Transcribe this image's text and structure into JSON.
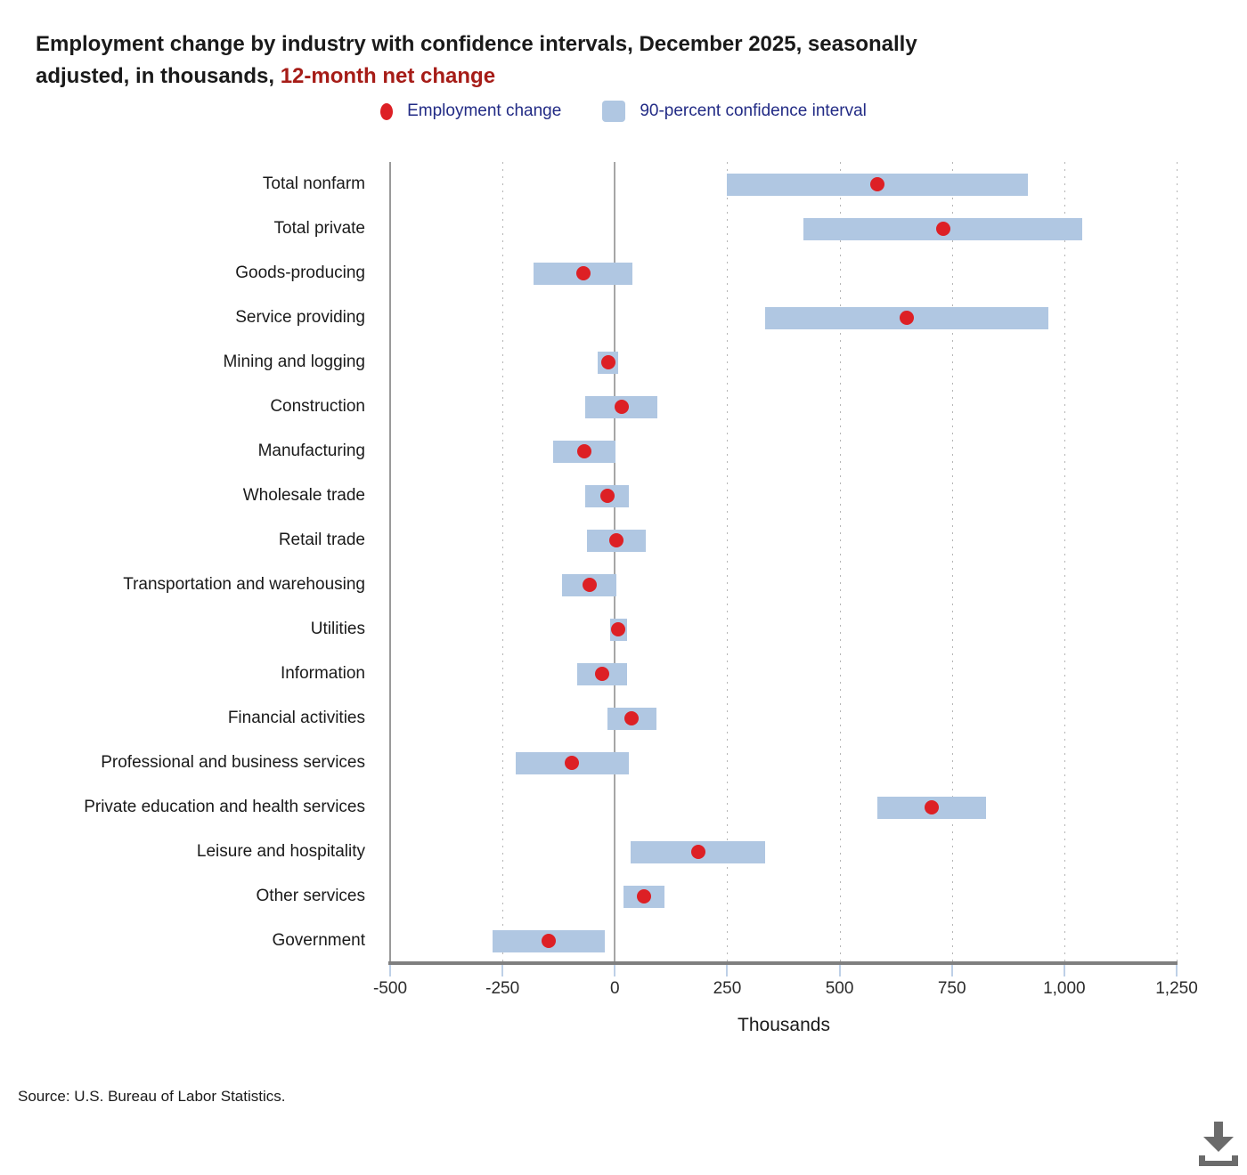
{
  "title": {
    "line1": "Employment change by industry with confidence intervals, December 2025, seasonally",
    "line2": "adjusted, in thousands,",
    "highlight": "12-month net change"
  },
  "legend": {
    "employment_change": "Employment change",
    "confidence_interval": "90-percent confidence interval"
  },
  "source_note": "Source: U.S. Bureau of Labor Statistics.",
  "download_icon": "download-arrow-to-tray",
  "colors": {
    "ci_bar": "#b0c7e2",
    "dot": "#dd2025",
    "legend_text": "#222b85",
    "title_highlight": "#a61c17",
    "gridline": "#b5b5b5",
    "zero_line": "#a6a6a6",
    "baseline": "#7f7f7f",
    "tick": "#bed0e7",
    "icon": "#6b6b6b"
  },
  "chart_data": {
    "type": "scatter",
    "subtype": "dot-with-confidence-interval",
    "title": "Employment change by industry with confidence intervals, December 2025, seasonally adjusted, in thousands, 12-month net change",
    "xlabel": "Thousands",
    "xlim": [
      -500,
      1250
    ],
    "x_ticks": [
      -500,
      -250,
      0,
      250,
      500,
      750,
      1000,
      1250
    ],
    "x_tick_labels": [
      "-500",
      "-250",
      "0",
      "250",
      "500",
      "750",
      "1,000",
      "1,250"
    ],
    "grid": "vertical-dotted-at-ticks",
    "legend_position": "top-center",
    "categories": [
      "Total nonfarm",
      "Total private",
      "Goods-producing",
      "Service providing",
      "Mining and logging",
      "Construction",
      "Manufacturing",
      "Wholesale trade",
      "Retail trade",
      "Transportation and warehousing",
      "Utilities",
      "Information",
      "Financial activities",
      "Professional and business services",
      "Private education and health services",
      "Leisure and hospitality",
      "Other services",
      "Government"
    ],
    "series": [
      {
        "name": "Employment change",
        "values": [
          585,
          730,
          -70,
          650,
          -15,
          15,
          -68,
          -17,
          3,
          -57,
          8,
          -28,
          38,
          -95,
          705,
          185,
          65,
          -148
        ]
      },
      {
        "name": "90-percent confidence interval",
        "low": [
          250,
          420,
          -180,
          335,
          -38,
          -65,
          -137,
          -66,
          -62,
          -117,
          -11,
          -84,
          -16,
          -221,
          585,
          35,
          20,
          -273
        ],
        "high": [
          920,
          1040,
          40,
          965,
          8,
          95,
          1,
          32,
          68,
          3,
          27,
          28,
          92,
          31,
          825,
          335,
          110,
          -23
        ]
      }
    ]
  }
}
